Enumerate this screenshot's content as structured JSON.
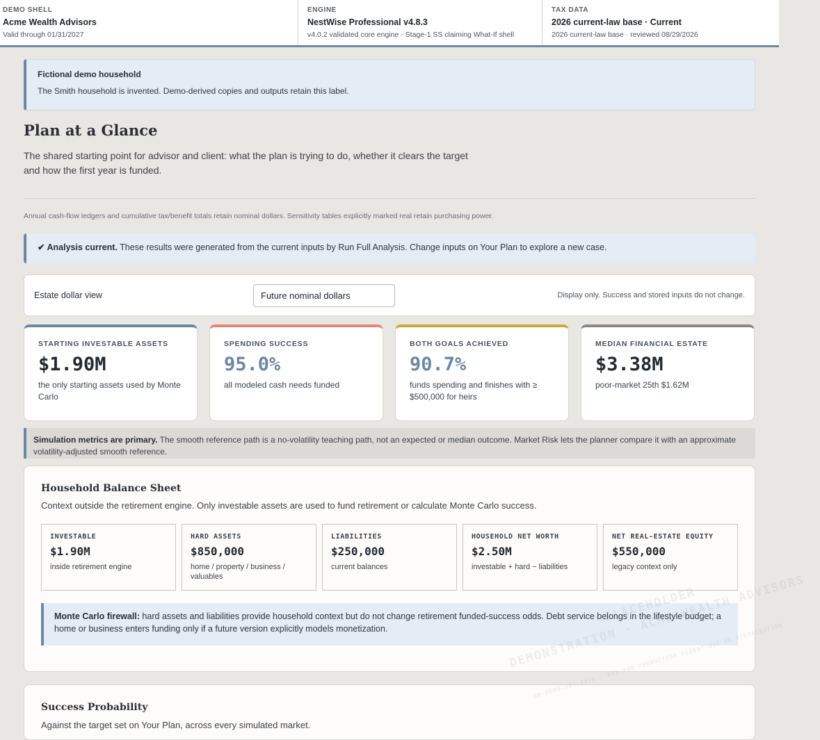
{
  "header": {
    "cells": [
      {
        "eyebrow": "DEMO SHELL",
        "value": "Acme Wealth Advisors",
        "sub": "Valid through 01/31/2027"
      },
      {
        "eyebrow": "ENGINE",
        "value": "NestWise Professional v4.8.3",
        "sub": "v4.0.2 validated core engine · Stage-1 SS claiming What-If shell"
      },
      {
        "eyebrow": "TAX DATA",
        "value": "2026 current-law base · Current",
        "sub": "2026 current-law base · reviewed 08/29/2026"
      }
    ]
  },
  "notice": {
    "title": "Fictional demo household",
    "text": "The Smith household is invented. Demo-derived copies and outputs retain this label."
  },
  "page": {
    "title": "Plan at a Glance",
    "intro": "The shared starting point for advisor and client: what the plan is trying to do, whether it clears the target and how the first year is funded.",
    "dollar_note": "Annual cash-flow ledgers and cumulative tax/benefit totals retain nominal dollars. Sensitivity tables explicitly marked real retain purchasing power."
  },
  "status": {
    "bold": "✔ Analysis current.",
    "text": " These results were generated from the current inputs by Run Full Analysis. Change inputs on Your Plan to explore a new case."
  },
  "view": {
    "label": "Estate dollar view",
    "selected": "Future nominal dollars",
    "hint": "Display only. Success and stored inputs do not change."
  },
  "kpis": [
    {
      "title": "STARTING INVESTABLE ASSETS",
      "value": "$1.90M",
      "desc": "the only starting assets used by Monte Carlo",
      "accent": "#6e86a3",
      "value_color": "dark"
    },
    {
      "title": "SPENDING SUCCESS",
      "value": "95.0%",
      "desc": "all modeled cash needs funded",
      "accent": "#e0877a",
      "value_color": "blue"
    },
    {
      "title": "BOTH GOALS ACHIEVED",
      "value": "90.7%",
      "desc": "funds spending and finishes with ≥ $500,000 for heirs",
      "accent": "#c9a83a",
      "value_color": "blue"
    },
    {
      "title": "MEDIAN FINANCIAL ESTATE",
      "value": "$3.38M",
      "desc": "poor-market 25th $1.62M",
      "accent": "#8a8780",
      "value_color": "dark"
    }
  ],
  "simnote": {
    "bold": "Simulation metrics are primary.",
    "text": " The smooth reference path is a no-volatility teaching path, not an expected or median outcome. Market Risk lets the planner compare it with an approximate volatility-adjusted smooth reference."
  },
  "balance_sheet": {
    "title": "Household Balance Sheet",
    "desc": "Context outside the retirement engine. Only investable assets are used to fund retirement or calculate Monte Carlo success.",
    "items": [
      {
        "title": "INVESTABLE",
        "value": "$1.90M",
        "desc": "inside retirement engine"
      },
      {
        "title": "HARD ASSETS",
        "value": "$850,000",
        "desc": "home / property / business / valuables"
      },
      {
        "title": "LIABILITIES",
        "value": "$250,000",
        "desc": "current balances"
      },
      {
        "title": "HOUSEHOLD NET WORTH",
        "value": "$2.50M",
        "desc": "investable + hard − liabilities"
      },
      {
        "title": "NET REAL-ESTATE EQUITY",
        "value": "$550,000",
        "desc": "legacy context only"
      }
    ],
    "firewall_bold": "Monte Carlo firewall:",
    "firewall_text": " hard assets and liabilities provide household context but do not change retirement funded-success odds. Debt service belongs in the lifestyle budget; a home or business enters funding only if a future version explicitly models monetization."
  },
  "success": {
    "title": "Success Probability",
    "desc": "Against the target set on Your Plan, across every simulated market."
  },
  "watermark": {
    "line1": "DEMONSTRATION · ACME WEALTH ADVISORS",
    "line2": "PLACEHOLDER",
    "line3": "NW-DEMO-001-2026 · NOT FOR PRODUCTION CLIENT USE OR DISTRIBUTION"
  },
  "colors": {
    "accent": "#6e86a3",
    "background": "#e9e7e3"
  }
}
